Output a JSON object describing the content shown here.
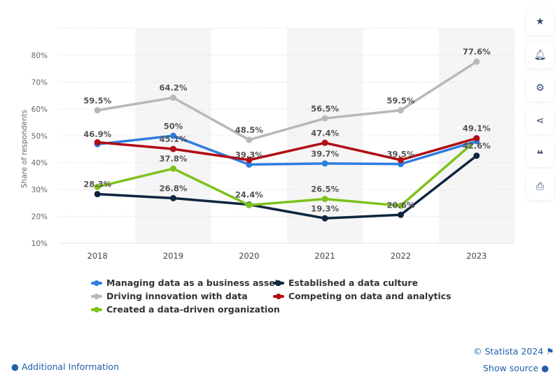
{
  "chart_data": {
    "type": "line",
    "ylabel": "Share of respondents",
    "xlabel": "",
    "categories": [
      "2018",
      "2019",
      "2020",
      "2021",
      "2022",
      "2023"
    ],
    "yticks": [
      "10%",
      "20%",
      "30%",
      "40%",
      "50%",
      "60%",
      "70%",
      "80%"
    ],
    "ylim": [
      10,
      90
    ],
    "grid": true,
    "legend_placement": "bottom",
    "series": [
      {
        "name": "Driving innovation with data",
        "color": "#b8b8b8",
        "values": [
          59.5,
          64.2,
          48.5,
          56.5,
          59.5,
          77.6
        ],
        "labels": [
          "59.5%",
          "64.2%",
          "48.5%",
          "56.5%",
          "59.5%",
          "77.6%"
        ]
      },
      {
        "name": "Managing data as a business asset",
        "color": "#2e7de1",
        "values": [
          46.9,
          50,
          39.3,
          39.7,
          39.5,
          48
        ],
        "labels": [
          "46.9%",
          "50%",
          "39.3%",
          "39.7%",
          "39.5%",
          ""
        ]
      },
      {
        "name": "Competing on data and analytics",
        "color": "#b00d13",
        "values": [
          47.6,
          45.1,
          41,
          47.4,
          41,
          49.1
        ],
        "labels": [
          "",
          "45.1%",
          "",
          "47.4%",
          "",
          "49.1%"
        ]
      },
      {
        "name": "Created a data-driven organization",
        "color": "#7dc21c",
        "values": [
          31,
          37.8,
          24.2,
          26.5,
          24,
          48.5
        ],
        "labels": [
          "",
          "37.8%",
          "",
          "26.5%",
          "",
          ""
        ]
      },
      {
        "name": "Established a data culture",
        "color": "#0f2540",
        "values": [
          28.3,
          26.8,
          24.4,
          19.3,
          20.6,
          42.6
        ],
        "labels": [
          "28.3%",
          "26.8%",
          "24.4%",
          "19.3%",
          "20.6%",
          "42.6%"
        ]
      }
    ]
  },
  "legend": [
    {
      "label": "Managing data as a business asset",
      "color": "#2e7de1"
    },
    {
      "label": "Established a data culture",
      "color": "#0f2540"
    },
    {
      "label": "Driving innovation with data",
      "color": "#b8b8b8"
    },
    {
      "label": "Competing on data and analytics",
      "color": "#b00d13"
    },
    {
      "label": "Created a data-driven organization",
      "color": "#7dc21c"
    }
  ],
  "sidebar": [
    "star-icon",
    "bell-icon",
    "gear-icon",
    "share-icon",
    "quote-icon",
    "print-icon"
  ],
  "footer": {
    "copyright": "© Statista 2024",
    "additional": "Additional Information",
    "source": "Show source"
  }
}
